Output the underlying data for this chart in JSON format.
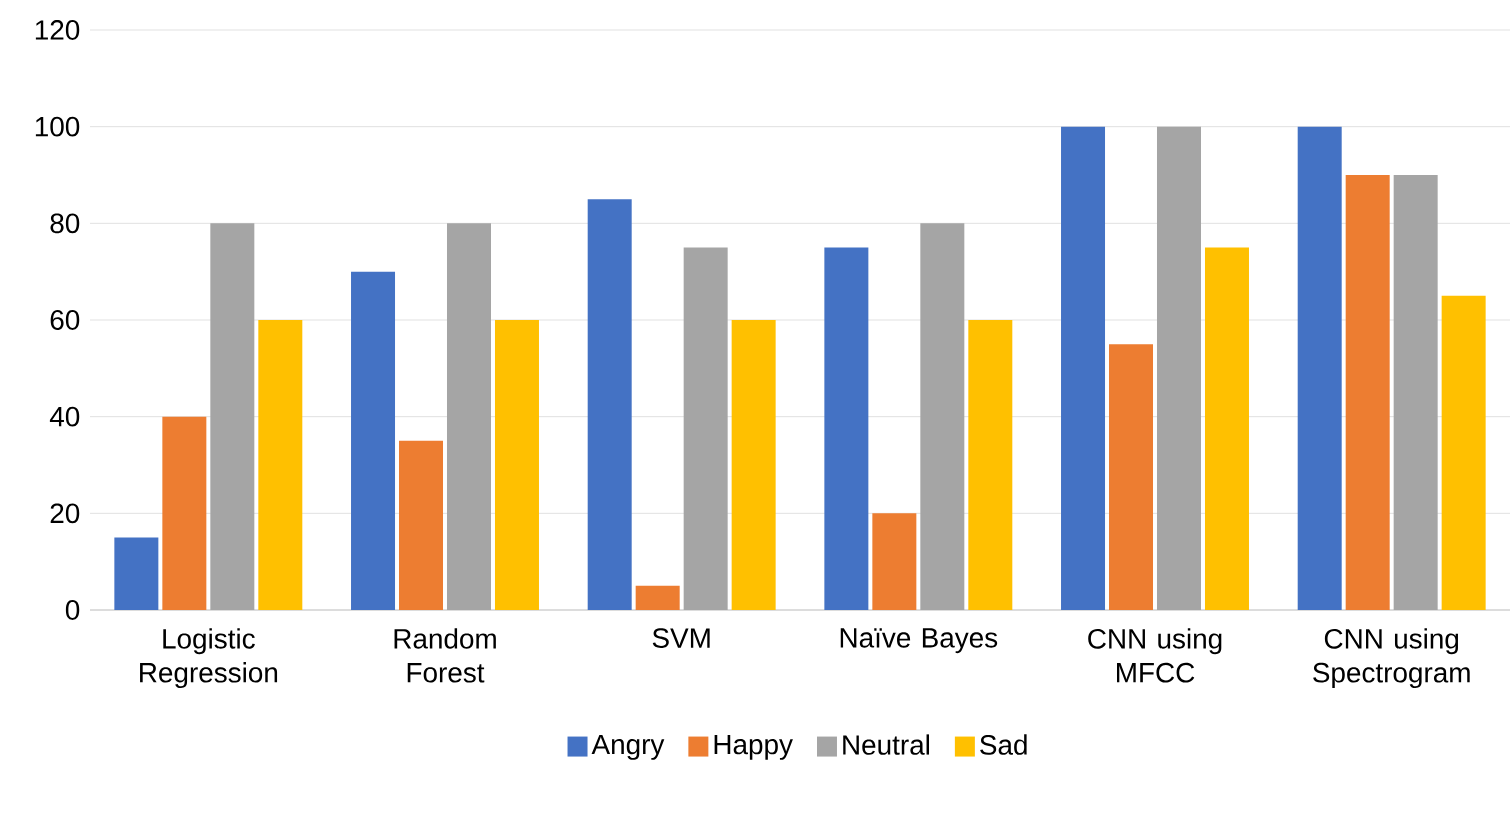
{
  "chart_data": {
    "type": "bar",
    "categories": [
      "Logistic Regression",
      "Random Forest",
      "SVM",
      "Naïve Bayes",
      "CNN using MFCC",
      "CNN using Spectrogram"
    ],
    "series": [
      {
        "name": "Angry",
        "color": "#4472c4",
        "values": [
          15,
          70,
          85,
          75,
          100,
          100
        ]
      },
      {
        "name": "Happy",
        "color": "#ed7d31",
        "values": [
          40,
          35,
          5,
          20,
          55,
          90
        ]
      },
      {
        "name": "Neutral",
        "color": "#a5a5a5",
        "values": [
          80,
          80,
          75,
          80,
          100,
          90
        ]
      },
      {
        "name": "Sad",
        "color": "#ffc000",
        "values": [
          60,
          60,
          60,
          60,
          75,
          65
        ]
      }
    ],
    "ylim": [
      0,
      120
    ],
    "yticks": [
      0,
      20,
      40,
      60,
      80,
      100,
      120
    ],
    "grid": "y",
    "legend": "bottom"
  }
}
